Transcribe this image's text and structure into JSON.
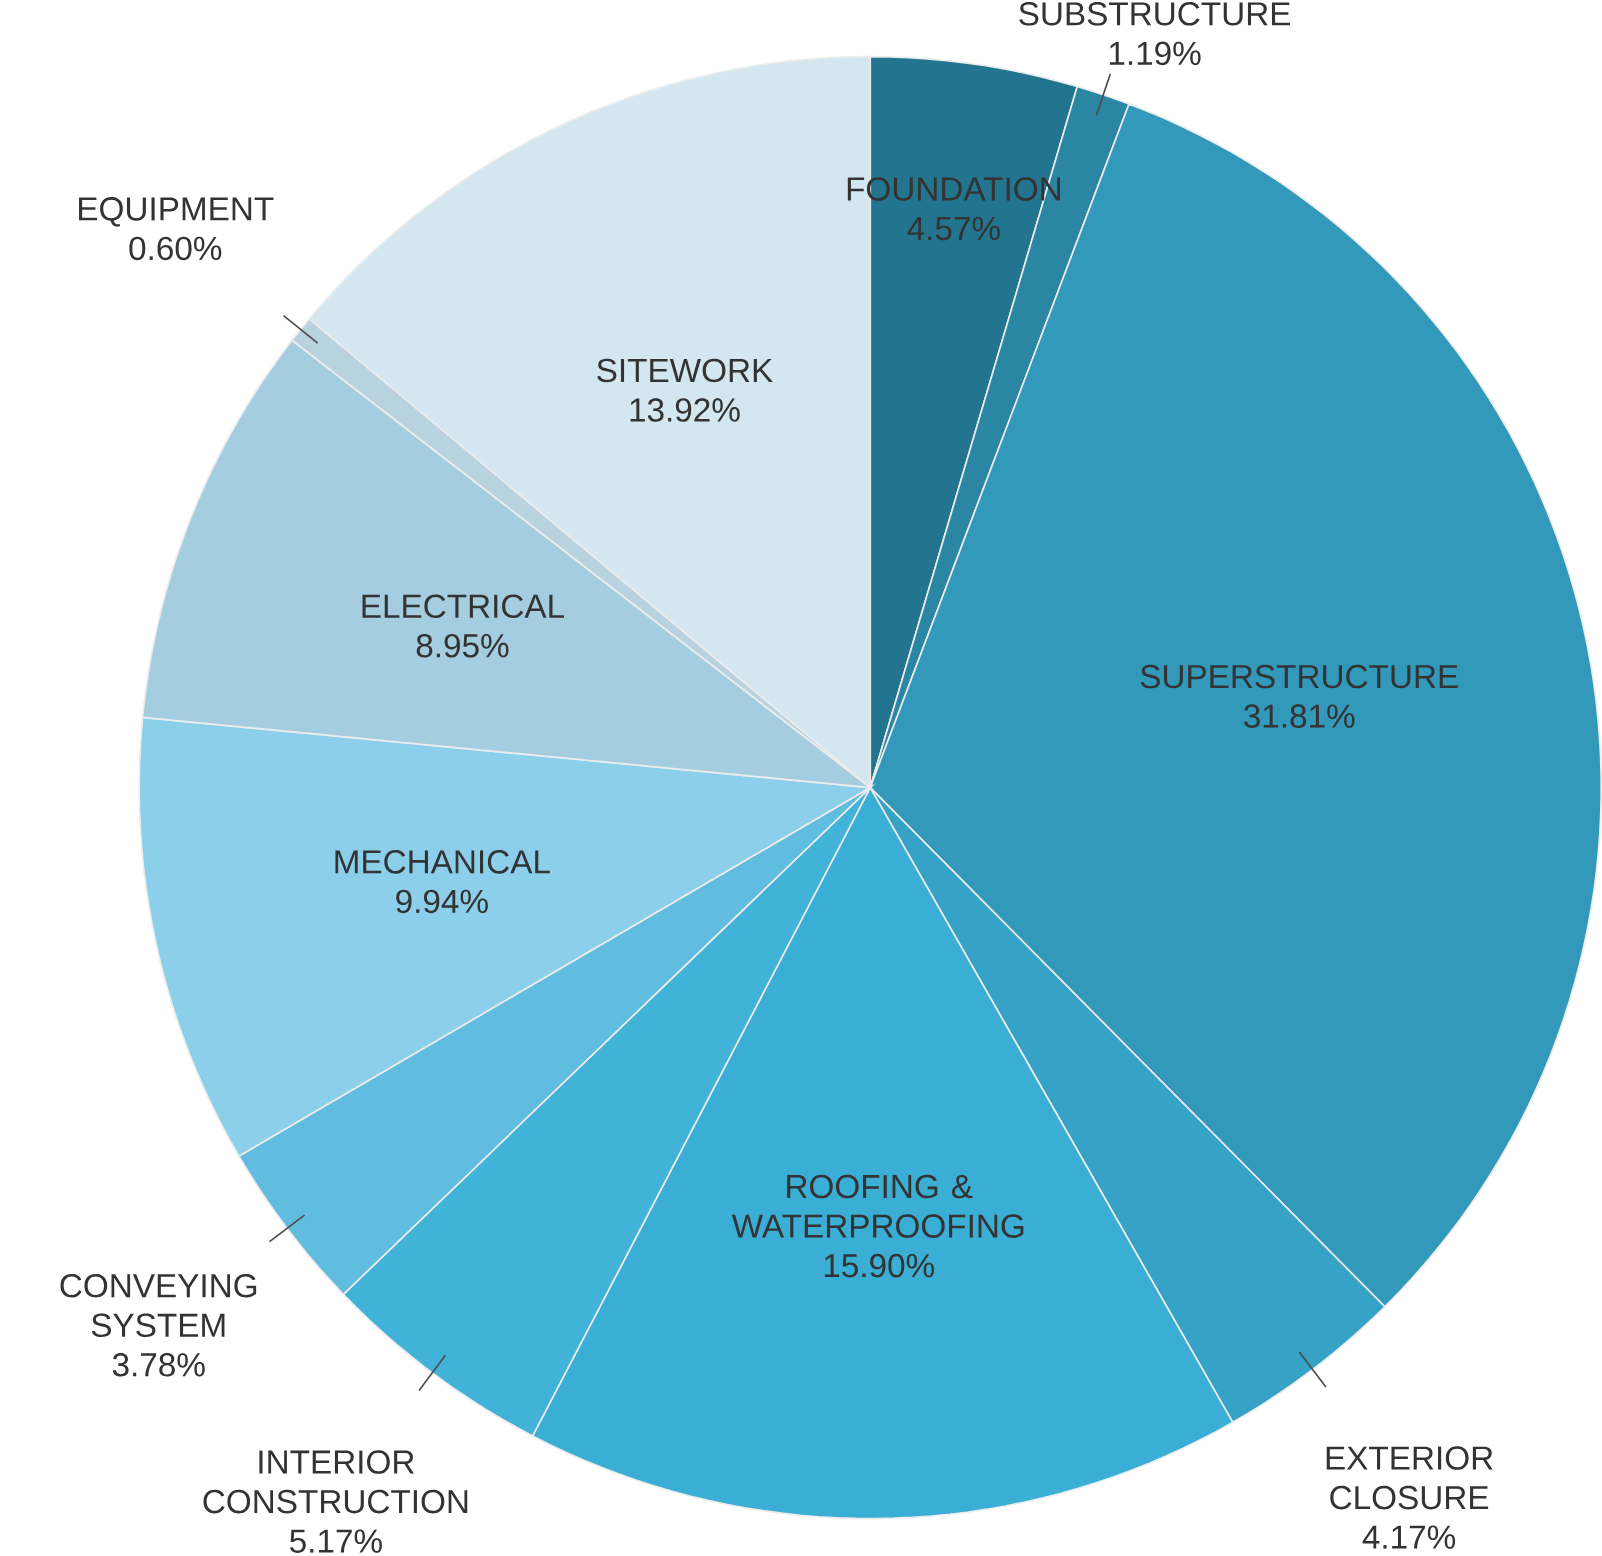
{
  "chart_data": {
    "type": "pie",
    "categories": [
      "FOUNDATION",
      "SUBSTRUCTURE",
      "SUPERSTRUCTURE",
      "EXTERIOR CLOSURE",
      "ROOFING & WATERPROOFING",
      "INTERIOR CONSTRUCTION",
      "CONVEYING SYSTEM",
      "MECHANICAL",
      "ELECTRICAL",
      "EQUIPMENT",
      "SITEWORK"
    ],
    "values": [
      4.57,
      1.19,
      31.81,
      4.17,
      15.9,
      5.17,
      3.78,
      9.94,
      8.95,
      0.6,
      13.92
    ],
    "value_labels": [
      "4.57%",
      "1.19%",
      "31.81%",
      "4.17%",
      "15.90%",
      "5.17%",
      "3.78%",
      "9.94%",
      "8.95%",
      "0.60%",
      "13.92%"
    ],
    "colors": [
      "#23758f",
      "#2a86a3",
      "#3399bb",
      "#36a3c6",
      "#3aaed4",
      "#41b3d9",
      "#60bde0",
      "#8ccfeb",
      "#a5cde0",
      "#b8d3df",
      "#d4e6ef"
    ]
  }
}
